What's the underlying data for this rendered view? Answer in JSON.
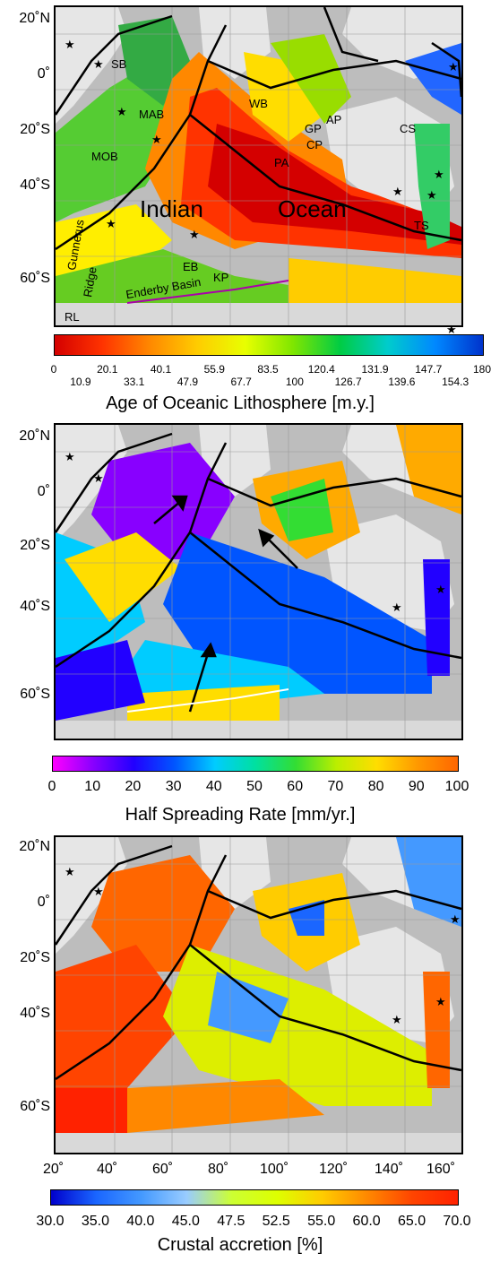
{
  "lat_labels": [
    "20˚N",
    "0˚",
    "20˚S",
    "40˚S",
    "60˚S"
  ],
  "lon_labels": [
    "20˚",
    "40˚",
    "60˚",
    "80˚",
    "100˚",
    "120˚",
    "140˚",
    "160˚"
  ],
  "panel1": {
    "labels": {
      "sb": "SB",
      "mab": "MAB",
      "mob": "MOB",
      "wb": "WB",
      "gp": "GP",
      "ap": "AP",
      "cp": "CP",
      "pa": "PA",
      "cs": "CS",
      "ts": "TS",
      "indian": "Indian",
      "ocean": "Ocean",
      "eb": "EB",
      "kp": "KP",
      "enderby": "Enderby Basin",
      "gunnerus1": "Gunnerus",
      "gunnerus2": "Ridge",
      "rl": "RL"
    },
    "colorbar": {
      "title": "Age of Oceanic Lithosphere [m.y.]",
      "top_ticks": [
        "0",
        "20.1",
        "40.1",
        "55.9",
        "83.5",
        "120.4",
        "131.9",
        "147.7",
        "180"
      ],
      "bottom_ticks": [
        "10.9",
        "33.1",
        "47.9",
        "67.7",
        "100",
        "126.7",
        "139.6",
        "154.3"
      ],
      "colors": [
        "#d40000",
        "#ff3300",
        "#ff8800",
        "#ffcc00",
        "#e8ff00",
        "#80e600",
        "#00cc44",
        "#00cccc",
        "#0088ff",
        "#0033cc"
      ]
    }
  },
  "panel2": {
    "colorbar": {
      "title": "Half Spreading Rate [mm/yr.]",
      "ticks": [
        "0",
        "10",
        "20",
        "30",
        "40",
        "50",
        "60",
        "70",
        "80",
        "90",
        "100"
      ],
      "colors": [
        "#ff00ff",
        "#8800ff",
        "#2200ff",
        "#0055ff",
        "#00ccff",
        "#00e0a0",
        "#33dd33",
        "#bbee00",
        "#ffdd00",
        "#ff9900",
        "#ff6600"
      ]
    }
  },
  "panel3": {
    "colorbar": {
      "title": "Crustal accretion [%]",
      "ticks": [
        "30.0",
        "35.0",
        "40.0",
        "45.0",
        "47.5",
        "52.5",
        "55.0",
        "60.0",
        "65.0",
        "70.0"
      ],
      "colors": [
        "#0000cc",
        "#1a66ff",
        "#4499ff",
        "#99ccff",
        "#ccff33",
        "#ddff00",
        "#ffcc00",
        "#ff8800",
        "#ff4400",
        "#ff2200"
      ]
    }
  }
}
